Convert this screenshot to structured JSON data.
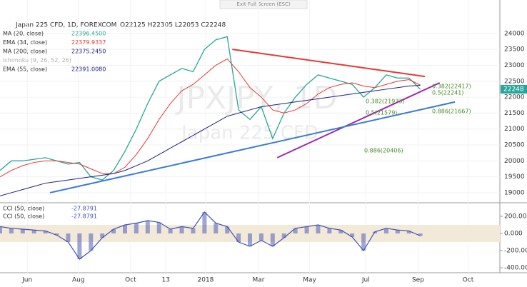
{
  "chart_data": [
    {
      "type": "line",
      "top_button": "Exit Full Screen (ESC)",
      "title": "Japan 225 CFD, 1D, FOREXCOM",
      "ohlc_text": "O22125 H22305 L22053 C22248",
      "watermark": "JPXJPY, 1D",
      "watermark_sub": "Japan 225 CFD",
      "indicators": [
        {
          "name": "MA (20, close)",
          "value": "22396.4500"
        },
        {
          "name": "EMA (34, close)",
          "value": "22379.9337"
        },
        {
          "name": "MA (200, close)",
          "value": "22375.2450"
        },
        {
          "name": "Ichimoku (9, 26, 52, 26)",
          "value": ""
        },
        {
          "name": "EMA (55, close)",
          "value": "22391.0080"
        }
      ],
      "last_price": 22248,
      "x": [
        0,
        2,
        4,
        6,
        8,
        10,
        12,
        14,
        16,
        18,
        20,
        22,
        24,
        26,
        28,
        30,
        32,
        34,
        36,
        38,
        40,
        42,
        44,
        46,
        48,
        50,
        52,
        54,
        56,
        58,
        60,
        62,
        64,
        66,
        68,
        70,
        72,
        74
      ],
      "xlim": [
        0,
        88
      ],
      "xticks": [
        {
          "value": 4.8,
          "label": "Jun"
        },
        {
          "value": 13.8,
          "label": "Aug"
        },
        {
          "value": 23,
          "label": "Oct"
        },
        {
          "value": 29.2,
          "label": "13"
        },
        {
          "value": 36.2,
          "label": "2018"
        },
        {
          "value": 45.5,
          "label": "Mar"
        },
        {
          "value": 54.5,
          "label": "May"
        },
        {
          "value": 64.4,
          "label": "Jul"
        },
        {
          "value": 73.6,
          "label": "Sep"
        },
        {
          "value": 82.4,
          "label": "Oct"
        }
      ],
      "ylim": [
        18730,
        25050
      ],
      "yticks": [
        19000,
        19500,
        20000,
        20500,
        21000,
        21500,
        22000,
        22500,
        23000,
        23500,
        24000
      ],
      "series": [
        {
          "name": "Close",
          "color": "#26a69a",
          "values": [
            19700,
            20000,
            20000,
            20050,
            20100,
            20000,
            19900,
            19950,
            19500,
            19400,
            19700,
            20300,
            21000,
            21800,
            22500,
            22700,
            22900,
            22800,
            23500,
            23800,
            23900,
            21600,
            21300,
            21700,
            20700,
            21500,
            22000,
            22400,
            22700,
            22600,
            22500,
            22400,
            22000,
            22300,
            22700,
            22600,
            22600,
            22248
          ]
        },
        {
          "name": "EMA (34, close)",
          "color": "#e53935",
          "values": [
            19500,
            19700,
            19850,
            19950,
            20000,
            20000,
            19950,
            19900,
            19750,
            19600,
            19600,
            19800,
            20200,
            20700,
            21300,
            21800,
            22200,
            22400,
            22700,
            23000,
            23200,
            22800,
            22300,
            22000,
            21600,
            21500,
            21600,
            21800,
            22100,
            22300,
            22400,
            22450,
            22350,
            22300,
            22400,
            22500,
            22550,
            22380
          ]
        },
        {
          "name": "MA (200, close)",
          "color": "#1a237e",
          "values": [
            18900,
            19000,
            19100,
            19200,
            19300,
            19350,
            19400,
            19450,
            19500,
            19550,
            19600,
            19700,
            19850,
            20000,
            20200,
            20400,
            20600,
            20800,
            21000,
            21200,
            21400,
            21500,
            21600,
            21700,
            21750,
            21800,
            21850,
            21900,
            21950,
            22000,
            22050,
            22100,
            22150,
            22200,
            22250,
            22300,
            22350,
            22375
          ]
        }
      ],
      "trendlines": [
        {
          "color": "#e53935",
          "x": [
            40.9,
            74.8
          ],
          "y": [
            23500,
            22650
          ]
        },
        {
          "color": "#9c27b0",
          "x": [
            48.8,
            77.4
          ],
          "y": [
            20100,
            22450
          ]
        },
        {
          "color": "#3a7bd5",
          "x": [
            8.8,
            80.1
          ],
          "y": [
            19000,
            21850
          ]
        }
      ],
      "fib_labels": [
        "0.382(22417)",
        "0.5(22241)",
        "0.886(21667)",
        "0.886(20406)",
        "0.382(21933)",
        "0.5(21579)"
      ]
    },
    {
      "type": "cci",
      "indicators": [
        {
          "name": "CCI (50, close)",
          "value": "-27.8791"
        },
        {
          "name": "CCI (50, close)",
          "value": "-27.8791"
        }
      ],
      "color": "#3f51b5",
      "band": [
        100,
        -100
      ],
      "values": [
        80,
        60,
        50,
        40,
        30,
        -20,
        -100,
        -300,
        -200,
        -50,
        50,
        100,
        120,
        150,
        130,
        50,
        80,
        60,
        250,
        120,
        80,
        -100,
        -150,
        -80,
        -150,
        -50,
        60,
        80,
        100,
        60,
        40,
        -40,
        -200,
        20,
        60,
        40,
        30,
        -28
      ],
      "ylim": [
        -458,
        350
      ],
      "yticks": [
        {
          "value": 200,
          "label": "200.000"
        },
        {
          "value": 0,
          "label": "0.000"
        },
        {
          "value": -200,
          "label": "-200.000"
        },
        {
          "value": -400,
          "label": "-400.000"
        }
      ]
    }
  ]
}
